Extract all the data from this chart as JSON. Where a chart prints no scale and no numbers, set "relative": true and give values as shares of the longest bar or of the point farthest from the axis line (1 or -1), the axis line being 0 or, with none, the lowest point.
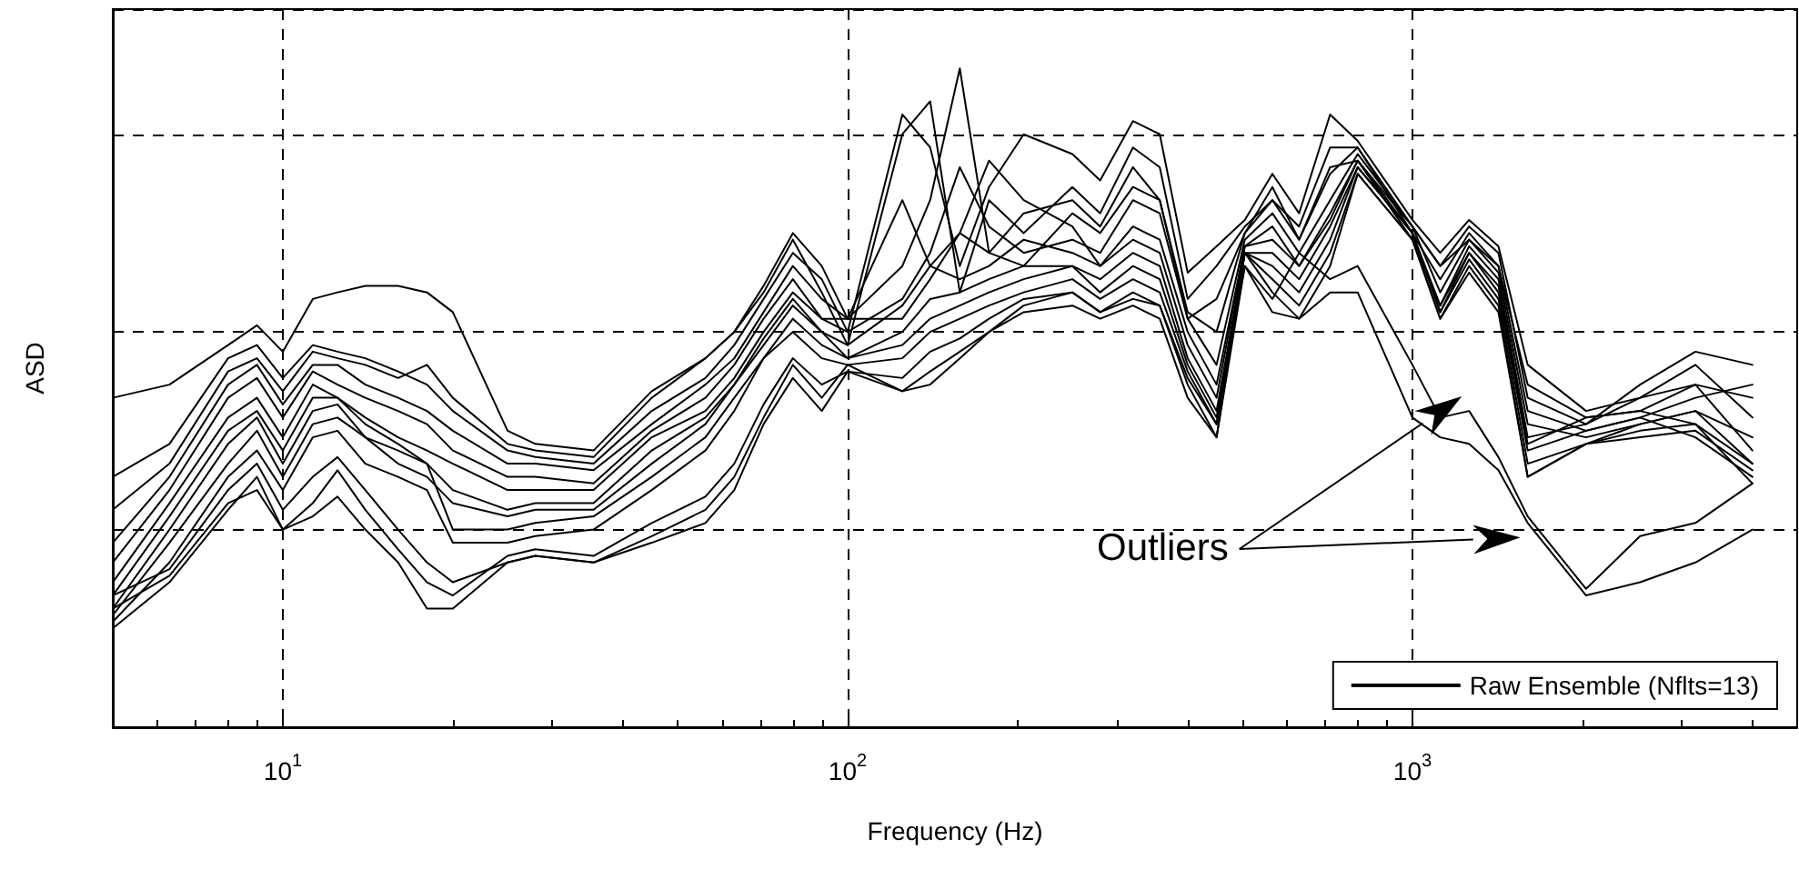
{
  "chart_data": {
    "type": "line",
    "xlabel": "Frequency (Hz)",
    "ylabel": "ASD",
    "relative": true,
    "log": "x",
    "grid": true,
    "legend": "bottom right",
    "marker": "none",
    "line_style": "solid",
    "annotations": [
      "Outliers"
    ],
    "xlim": [
      5,
      4800
    ],
    "xticks": [
      {
        "value": 10,
        "label": "10$^{1}$"
      },
      {
        "value": 100,
        "label": "10$^{2}$"
      },
      {
        "value": 1000,
        "label": "10$^{3}$"
      }
    ],
    "x": [
      5,
      6.3,
      8,
      9,
      10,
      11.3,
      12.5,
      14,
      16,
      18,
      20,
      25,
      28,
      35.5,
      45,
      56,
      63,
      71,
      80,
      90,
      100,
      125,
      140,
      158,
      178,
      205,
      250,
      280,
      320,
      357,
      400,
      450,
      505,
      565,
      630,
      715,
      800,
      1000,
      1120,
      1260,
      1420,
      1600,
      2030,
      2530,
      3170,
      4000
    ],
    "series": [
      {
        "name": "Raw Ensemble (Nflts=13)",
        "color": "#000000",
        "values": [
          0.5,
          0.52,
          0.58,
          0.61,
          0.57,
          0.65,
          0.66,
          0.67,
          0.67,
          0.66,
          0.63,
          0.45,
          0.43,
          0.42,
          0.51,
          0.56,
          0.6,
          0.67,
          0.75,
          0.7,
          0.62,
          0.8,
          0.7,
          0.75,
          0.72,
          0.78,
          0.8,
          0.76,
          0.85,
          0.8,
          0.62,
          0.65,
          0.75,
          0.8,
          0.74,
          0.85,
          0.86,
          0.76,
          0.7,
          0.74,
          0.7,
          0.52,
          0.47,
          0.48,
          0.52,
          0.5
        ]
      },
      {
        "color": "#000000",
        "values": [
          0.38,
          0.43,
          0.56,
          0.58,
          0.53,
          0.58,
          0.57,
          0.56,
          0.54,
          0.52,
          0.48,
          0.42,
          0.41,
          0.4,
          0.48,
          0.53,
          0.58,
          0.65,
          0.72,
          0.68,
          0.6,
          0.93,
          0.88,
          0.7,
          0.82,
          0.9,
          0.87,
          0.83,
          0.92,
          0.9,
          0.69,
          0.73,
          0.77,
          0.84,
          0.78,
          0.93,
          0.89,
          0.77,
          0.72,
          0.77,
          0.73,
          0.55,
          0.48,
          0.5,
          0.55,
          0.47
        ]
      },
      {
        "color": "#000000",
        "values": [
          0.33,
          0.4,
          0.54,
          0.56,
          0.51,
          0.57,
          0.56,
          0.55,
          0.53,
          0.55,
          0.5,
          0.43,
          0.42,
          0.41,
          0.5,
          0.56,
          0.6,
          0.66,
          0.74,
          0.66,
          0.58,
          0.9,
          0.95,
          0.66,
          0.8,
          0.75,
          0.82,
          0.78,
          0.88,
          0.85,
          0.65,
          0.7,
          0.76,
          0.8,
          0.76,
          0.88,
          0.88,
          0.76,
          0.7,
          0.76,
          0.72,
          0.5,
          0.46,
          0.52,
          0.57,
          0.55
        ]
      },
      {
        "color": "#000000",
        "values": [
          0.28,
          0.38,
          0.52,
          0.55,
          0.49,
          0.55,
          0.55,
          0.52,
          0.5,
          0.48,
          0.45,
          0.4,
          0.4,
          0.39,
          0.46,
          0.52,
          0.56,
          0.63,
          0.7,
          0.65,
          0.62,
          0.7,
          0.8,
          1.0,
          0.72,
          0.7,
          0.78,
          0.75,
          0.82,
          0.8,
          0.63,
          0.6,
          0.75,
          0.82,
          0.74,
          0.84,
          0.88,
          0.75,
          0.68,
          0.75,
          0.7,
          0.48,
          0.45,
          0.47,
          0.5,
          0.52
        ]
      },
      {
        "color": "#000000",
        "values": [
          0.25,
          0.36,
          0.5,
          0.53,
          0.47,
          0.54,
          0.52,
          0.5,
          0.48,
          0.46,
          0.42,
          0.38,
          0.38,
          0.37,
          0.45,
          0.5,
          0.55,
          0.62,
          0.68,
          0.62,
          0.6,
          0.65,
          0.72,
          0.85,
          0.76,
          0.72,
          0.74,
          0.72,
          0.8,
          0.78,
          0.62,
          0.55,
          0.74,
          0.78,
          0.72,
          0.8,
          0.87,
          0.76,
          0.66,
          0.74,
          0.69,
          0.46,
          0.44,
          0.46,
          0.48,
          0.44
        ]
      },
      {
        "color": "#000000",
        "values": [
          0.22,
          0.34,
          0.47,
          0.5,
          0.44,
          0.52,
          0.5,
          0.47,
          0.44,
          0.42,
          0.4,
          0.36,
          0.36,
          0.36,
          0.44,
          0.48,
          0.53,
          0.6,
          0.66,
          0.62,
          0.62,
          0.62,
          0.68,
          0.75,
          0.86,
          0.8,
          0.76,
          0.7,
          0.76,
          0.74,
          0.6,
          0.52,
          0.73,
          0.76,
          0.7,
          0.78,
          0.86,
          0.75,
          0.64,
          0.73,
          0.68,
          0.44,
          0.46,
          0.5,
          0.52,
          0.42
        ]
      },
      {
        "color": "#000000",
        "values": [
          0.2,
          0.32,
          0.45,
          0.48,
          0.42,
          0.5,
          0.5,
          0.46,
          0.43,
          0.4,
          0.36,
          0.33,
          0.34,
          0.34,
          0.42,
          0.47,
          0.52,
          0.59,
          0.65,
          0.6,
          0.58,
          0.64,
          0.7,
          0.68,
          0.7,
          0.74,
          0.72,
          0.7,
          0.74,
          0.72,
          0.58,
          0.5,
          0.73,
          0.74,
          0.7,
          0.77,
          0.86,
          0.74,
          0.64,
          0.72,
          0.67,
          0.43,
          0.47,
          0.48,
          0.46,
          0.4
        ]
      },
      {
        "color": "#000000",
        "values": [
          0.18,
          0.3,
          0.43,
          0.47,
          0.4,
          0.48,
          0.49,
          0.44,
          0.4,
          0.38,
          0.34,
          0.32,
          0.33,
          0.33,
          0.4,
          0.46,
          0.52,
          0.58,
          0.64,
          0.6,
          0.56,
          0.6,
          0.65,
          0.66,
          0.68,
          0.7,
          0.7,
          0.68,
          0.72,
          0.7,
          0.56,
          0.48,
          0.72,
          0.72,
          0.68,
          0.76,
          0.85,
          0.75,
          0.63,
          0.72,
          0.66,
          0.42,
          0.45,
          0.47,
          0.44,
          0.38
        ]
      },
      {
        "color": "#000000",
        "values": [
          0.17,
          0.28,
          0.4,
          0.45,
          0.38,
          0.46,
          0.47,
          0.44,
          0.42,
          0.4,
          0.3,
          0.3,
          0.31,
          0.32,
          0.38,
          0.44,
          0.5,
          0.56,
          0.62,
          0.58,
          0.56,
          0.58,
          0.62,
          0.64,
          0.66,
          0.68,
          0.7,
          0.66,
          0.7,
          0.68,
          0.55,
          0.47,
          0.72,
          0.7,
          0.66,
          0.74,
          0.85,
          0.75,
          0.63,
          0.71,
          0.65,
          0.4,
          0.43,
          0.44,
          0.45,
          0.39
        ]
      },
      {
        "color": "#000000",
        "values": [
          0.16,
          0.25,
          0.38,
          0.42,
          0.36,
          0.44,
          0.45,
          0.4,
          0.38,
          0.36,
          0.28,
          0.28,
          0.29,
          0.3,
          0.36,
          0.42,
          0.48,
          0.56,
          0.6,
          0.56,
          0.55,
          0.56,
          0.6,
          0.62,
          0.64,
          0.66,
          0.68,
          0.65,
          0.68,
          0.66,
          0.54,
          0.46,
          0.72,
          0.68,
          0.64,
          0.72,
          0.84,
          0.74,
          0.62,
          0.7,
          0.64,
          0.38,
          0.43,
          0.45,
          0.46,
          0.37
        ]
      },
      {
        "color": "#000000",
        "values": [
          0.15,
          0.22,
          0.33,
          0.38,
          0.3,
          0.34,
          0.39,
          0.33,
          0.27,
          0.22,
          0.2,
          0.26,
          0.27,
          0.26,
          0.31,
          0.35,
          0.4,
          0.49,
          0.56,
          0.52,
          0.54,
          0.53,
          0.57,
          0.59,
          0.62,
          0.65,
          0.66,
          0.63,
          0.65,
          0.64,
          0.52,
          0.44,
          0.72,
          0.66,
          0.62,
          0.7,
          0.84,
          0.74,
          0.62,
          0.69,
          0.63,
          0.38,
          0.43,
          0.46,
          0.48,
          0.4
        ]
      },
      {
        "color": "#000000",
        "values": [
          0.2,
          0.24,
          0.36,
          0.4,
          0.33,
          0.38,
          0.41,
          0.36,
          0.3,
          0.25,
          0.22,
          0.25,
          0.26,
          0.25,
          0.29,
          0.33,
          0.38,
          0.47,
          0.55,
          0.5,
          0.55,
          0.51,
          0.54,
          0.57,
          0.6,
          0.64,
          0.66,
          0.63,
          0.66,
          0.64,
          0.53,
          0.46,
          0.7,
          0.65,
          0.72,
          0.68,
          0.7,
          0.55,
          0.47,
          0.48,
          0.41,
          0.32,
          0.21,
          0.29,
          0.31,
          0.37
        ]
      },
      {
        "color": "#000000",
        "values": [
          0.18,
          0.23,
          0.34,
          0.36,
          0.3,
          0.32,
          0.35,
          0.3,
          0.25,
          0.18,
          0.18,
          0.25,
          0.26,
          0.25,
          0.28,
          0.31,
          0.36,
          0.46,
          0.53,
          0.48,
          0.54,
          0.51,
          0.52,
          0.56,
          0.6,
          0.63,
          0.64,
          0.62,
          0.64,
          0.62,
          0.5,
          0.44,
          0.7,
          0.63,
          0.62,
          0.66,
          0.66,
          0.47,
          0.44,
          0.43,
          0.39,
          0.31,
          0.2,
          0.22,
          0.25,
          0.3
        ]
      }
    ]
  }
}
